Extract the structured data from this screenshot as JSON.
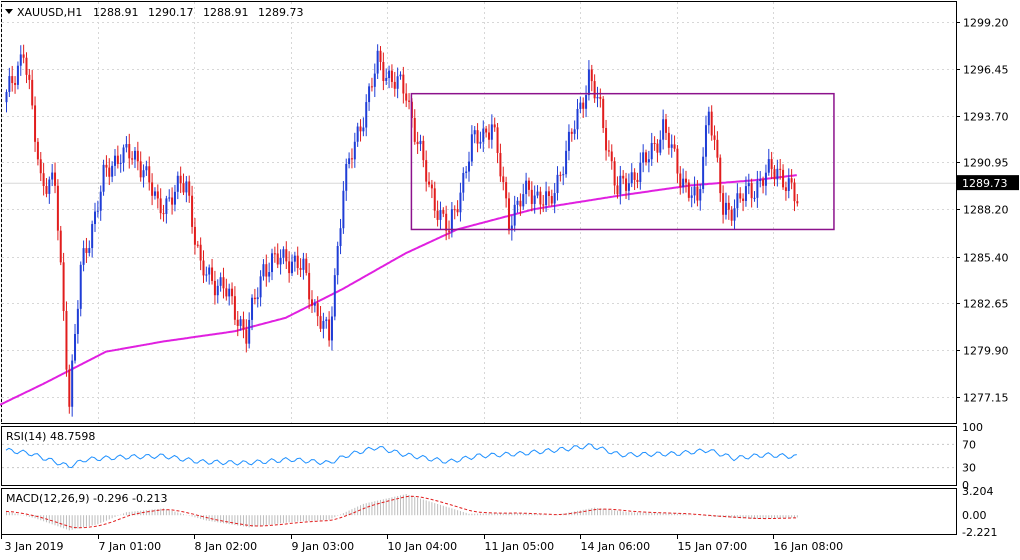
{
  "chart_data": {
    "type": "candlestick",
    "header": {
      "symbol_timeframe": "XAUUSD,H1",
      "open": "1288.91",
      "high": "1290.17",
      "low": "1288.91",
      "close": "1289.73"
    },
    "current_price_label": "1289.73",
    "ylim": [
      1275.6,
      1300.4
    ],
    "y_ticks": [
      "1299.20",
      "1296.45",
      "1293.70",
      "1290.95",
      "1288.20",
      "1285.40",
      "1282.65",
      "1279.90",
      "1277.15"
    ],
    "x_labels": [
      "3 Jan 2019",
      "7 Jan 01:00",
      "8 Jan 02:00",
      "9 Jan 03:00",
      "10 Jan 04:00",
      "11 Jan 05:00",
      "14 Jan 06:00",
      "15 Jan 07:00",
      "16 Jan 08:00"
    ],
    "anchors": [
      [
        0,
        1294.8
      ],
      [
        6,
        1297.6
      ],
      [
        12,
        1290.0
      ],
      [
        17,
        1289.6
      ],
      [
        22,
        1277.0
      ],
      [
        26,
        1284.5
      ],
      [
        34,
        1290.0
      ],
      [
        40,
        1291.6
      ],
      [
        48,
        1290.8
      ],
      [
        53,
        1288.2
      ],
      [
        63,
        1289.8
      ],
      [
        68,
        1284.6
      ],
      [
        76,
        1283.6
      ],
      [
        84,
        1280.8
      ],
      [
        90,
        1284.8
      ],
      [
        98,
        1285.4
      ],
      [
        104,
        1284.6
      ],
      [
        108,
        1282.4
      ],
      [
        113,
        1280.5
      ],
      [
        118,
        1289.6
      ],
      [
        124,
        1293.2
      ],
      [
        130,
        1296.8
      ],
      [
        140,
        1295.0
      ],
      [
        148,
        1289.4
      ],
      [
        155,
        1286.8
      ],
      [
        163,
        1292.0
      ],
      [
        170,
        1293.2
      ],
      [
        176,
        1287.6
      ],
      [
        183,
        1289.4
      ],
      [
        190,
        1288.4
      ],
      [
        197,
        1292.0
      ],
      [
        204,
        1296.0
      ],
      [
        208,
        1294.0
      ],
      [
        214,
        1289.2
      ],
      [
        224,
        1291.0
      ],
      [
        230,
        1293.0
      ],
      [
        236,
        1290.2
      ],
      [
        242,
        1288.4
      ],
      [
        246,
        1294.4
      ],
      [
        251,
        1288.0
      ],
      [
        256,
        1288.6
      ],
      [
        262,
        1289.5
      ],
      [
        266,
        1290.2
      ],
      [
        270,
        1290.6
      ],
      [
        277,
        1288.6
      ]
    ],
    "ma_points": [
      [
        -3,
        1276.6
      ],
      [
        13,
        1277.9
      ],
      [
        35,
        1279.8
      ],
      [
        55,
        1280.4
      ],
      [
        80,
        1281.0
      ],
      [
        98,
        1281.8
      ],
      [
        118,
        1283.5
      ],
      [
        140,
        1285.6
      ],
      [
        158,
        1287.0
      ],
      [
        185,
        1288.2
      ],
      [
        215,
        1289.0
      ],
      [
        240,
        1289.6
      ],
      [
        262,
        1289.9
      ],
      [
        277,
        1290.2
      ]
    ],
    "rectangle": {
      "t0": 142,
      "t1": 290,
      "y_top": 1295.0,
      "y_bottom": 1287.0
    },
    "rsi": {
      "label": "RSI(14) 48.7598",
      "levels": [
        "100",
        "70",
        "30",
        "0"
      ],
      "anchors": [
        [
          0,
          60
        ],
        [
          8,
          55
        ],
        [
          16,
          42
        ],
        [
          22,
          32
        ],
        [
          28,
          44
        ],
        [
          40,
          48
        ],
        [
          55,
          50
        ],
        [
          68,
          40
        ],
        [
          84,
          38
        ],
        [
          100,
          44
        ],
        [
          113,
          38
        ],
        [
          120,
          52
        ],
        [
          130,
          65
        ],
        [
          140,
          52
        ],
        [
          155,
          40
        ],
        [
          165,
          50
        ],
        [
          180,
          54
        ],
        [
          196,
          62
        ],
        [
          205,
          68
        ],
        [
          215,
          52
        ],
        [
          235,
          54
        ],
        [
          246,
          60
        ],
        [
          255,
          46
        ],
        [
          266,
          52
        ],
        [
          277,
          48.76
        ]
      ]
    },
    "macd": {
      "label": "MACD(12,26,9) -0.296 -0.213",
      "top_value": "3.204",
      "zero_value": "0.00",
      "bottom_value": "-2.221",
      "ylim": [
        -2.221,
        3.204
      ],
      "anchors": [
        [
          0,
          0.5
        ],
        [
          10,
          -0.4
        ],
        [
          22,
          -2.0
        ],
        [
          32,
          -1.2
        ],
        [
          42,
          0.4
        ],
        [
          55,
          0.9
        ],
        [
          70,
          -0.7
        ],
        [
          85,
          -1.6
        ],
        [
          100,
          -0.9
        ],
        [
          113,
          -0.6
        ],
        [
          125,
          1.5
        ],
        [
          140,
          2.8
        ],
        [
          150,
          1.6
        ],
        [
          162,
          0.2
        ],
        [
          178,
          0.3
        ],
        [
          192,
          0.0
        ],
        [
          206,
          1.0
        ],
        [
          218,
          0.4
        ],
        [
          236,
          0.2
        ],
        [
          248,
          -0.2
        ],
        [
          262,
          -0.5
        ],
        [
          277,
          -0.296
        ]
      ]
    },
    "colors": {
      "bull": "#1f3dd6",
      "bear": "#e11d1d",
      "moving_average": "#e020e0",
      "rectangle": "#8c128c",
      "rsi_line": "#1e90ff",
      "macd_signal": "#e11d1d",
      "macd_histogram": "#bdbdbd"
    }
  }
}
